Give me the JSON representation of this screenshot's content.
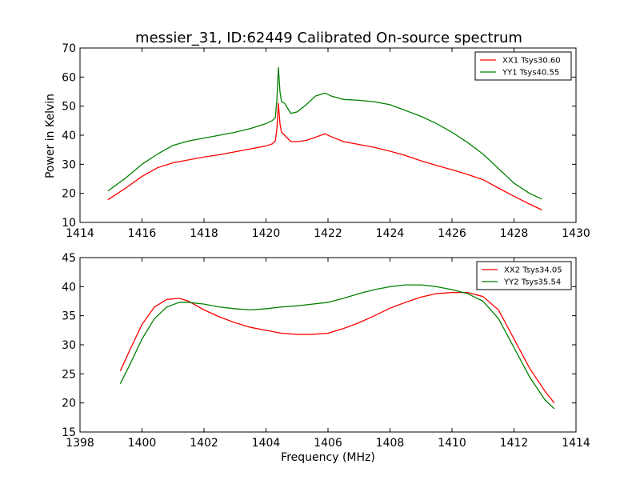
{
  "title": "messier_31, ID:62449 Calibrated On-source spectrum",
  "xlabel": "Frequency (MHz)",
  "ylabel": "Power in Kelvin",
  "colors": {
    "red": "#ff0000",
    "green": "#008000"
  },
  "chart_data": [
    {
      "type": "line",
      "title": "messier_31, ID:62449 Calibrated On-source spectrum",
      "ylabel": "Power in Kelvin",
      "xlim": [
        1414,
        1430
      ],
      "ylim": [
        10,
        70
      ],
      "xticks": [
        1414,
        1416,
        1418,
        1420,
        1422,
        1424,
        1426,
        1428,
        1430
      ],
      "yticks": [
        10,
        20,
        30,
        40,
        50,
        60,
        70
      ],
      "legend": "top-right",
      "series": [
        {
          "name": "XX1 Tsys30.60",
          "color": "#ff0000",
          "x": [
            1414.9,
            1415.5,
            1416.0,
            1416.5,
            1417.0,
            1417.5,
            1418.0,
            1418.5,
            1419.0,
            1419.5,
            1420.0,
            1420.2,
            1420.3,
            1420.35,
            1420.4,
            1420.45,
            1420.5,
            1420.6,
            1420.8,
            1421.0,
            1421.3,
            1421.6,
            1421.9,
            1422.1,
            1422.5,
            1423.0,
            1423.5,
            1424.0,
            1424.5,
            1425.0,
            1425.5,
            1426.0,
            1426.5,
            1427.0,
            1427.5,
            1428.0,
            1428.5,
            1428.9
          ],
          "y": [
            17.8,
            22.0,
            25.8,
            28.8,
            30.5,
            31.5,
            32.5,
            33.3,
            34.3,
            35.3,
            36.3,
            37.0,
            38.0,
            42.0,
            51.0,
            44.0,
            41.0,
            40.0,
            37.8,
            37.8,
            38.2,
            39.3,
            40.5,
            39.5,
            37.8,
            36.8,
            35.8,
            34.5,
            33.0,
            31.2,
            29.6,
            28.1,
            26.5,
            24.7,
            21.8,
            19.0,
            16.3,
            14.3
          ]
        },
        {
          "name": "YY1 Tsys40.55",
          "color": "#008000",
          "x": [
            1414.9,
            1415.5,
            1416.0,
            1416.5,
            1417.0,
            1417.5,
            1418.0,
            1418.5,
            1419.0,
            1419.5,
            1420.0,
            1420.2,
            1420.3,
            1420.35,
            1420.4,
            1420.45,
            1420.5,
            1420.6,
            1420.8,
            1421.0,
            1421.3,
            1421.6,
            1421.9,
            1422.1,
            1422.5,
            1423.0,
            1423.5,
            1424.0,
            1424.5,
            1425.0,
            1425.5,
            1426.0,
            1426.5,
            1427.0,
            1427.5,
            1428.0,
            1428.5,
            1428.9
          ],
          "y": [
            20.8,
            25.5,
            30.0,
            33.5,
            36.5,
            38.0,
            39.0,
            40.0,
            41.0,
            42.3,
            44.0,
            45.0,
            46.0,
            52.0,
            63.3,
            55.0,
            51.5,
            51.0,
            47.5,
            48.0,
            50.5,
            53.5,
            54.5,
            53.5,
            52.3,
            52.0,
            51.5,
            50.5,
            48.5,
            46.5,
            44.0,
            41.0,
            37.5,
            33.5,
            28.5,
            23.5,
            20.0,
            18.0
          ]
        }
      ]
    },
    {
      "type": "line",
      "xlabel": "Frequency (MHz)",
      "xlim": [
        1398,
        1414
      ],
      "ylim": [
        15,
        45
      ],
      "xticks": [
        1398,
        1400,
        1402,
        1404,
        1406,
        1408,
        1410,
        1412,
        1414
      ],
      "yticks": [
        15,
        20,
        25,
        30,
        35,
        40,
        45
      ],
      "legend": "top-right",
      "series": [
        {
          "name": "XX2 Tsys34.05",
          "color": "#ff0000",
          "x": [
            1399.3,
            1399.6,
            1400.0,
            1400.4,
            1400.8,
            1401.2,
            1401.5,
            1402.0,
            1402.5,
            1403.0,
            1403.5,
            1404.0,
            1404.5,
            1405.0,
            1405.5,
            1406.0,
            1406.5,
            1407.0,
            1407.5,
            1408.0,
            1408.5,
            1409.0,
            1409.5,
            1410.0,
            1410.5,
            1411.0,
            1411.5,
            1412.0,
            1412.5,
            1413.0,
            1413.3
          ],
          "y": [
            25.5,
            29.0,
            33.5,
            36.5,
            37.8,
            38.0,
            37.5,
            36.0,
            34.8,
            33.8,
            33.0,
            32.5,
            32.0,
            31.8,
            31.8,
            32.0,
            32.8,
            33.8,
            35.0,
            36.3,
            37.3,
            38.2,
            38.8,
            39.0,
            39.0,
            38.3,
            36.0,
            31.0,
            26.0,
            22.0,
            20.0
          ]
        },
        {
          "name": "YY2 Tsys35.54",
          "color": "#008000",
          "x": [
            1399.3,
            1399.6,
            1400.0,
            1400.4,
            1400.8,
            1401.2,
            1401.5,
            1402.0,
            1402.5,
            1403.0,
            1403.5,
            1404.0,
            1404.5,
            1405.0,
            1405.5,
            1406.0,
            1406.5,
            1407.0,
            1407.5,
            1408.0,
            1408.5,
            1409.0,
            1409.5,
            1410.0,
            1410.5,
            1411.0,
            1411.5,
            1412.0,
            1412.5,
            1413.0,
            1413.3
          ],
          "y": [
            23.3,
            26.5,
            31.0,
            34.5,
            36.5,
            37.3,
            37.3,
            37.0,
            36.5,
            36.2,
            36.0,
            36.2,
            36.5,
            36.7,
            37.0,
            37.3,
            38.0,
            38.8,
            39.5,
            40.0,
            40.3,
            40.3,
            40.0,
            39.5,
            38.8,
            37.5,
            34.5,
            29.5,
            24.5,
            20.5,
            19.0
          ]
        }
      ]
    }
  ]
}
